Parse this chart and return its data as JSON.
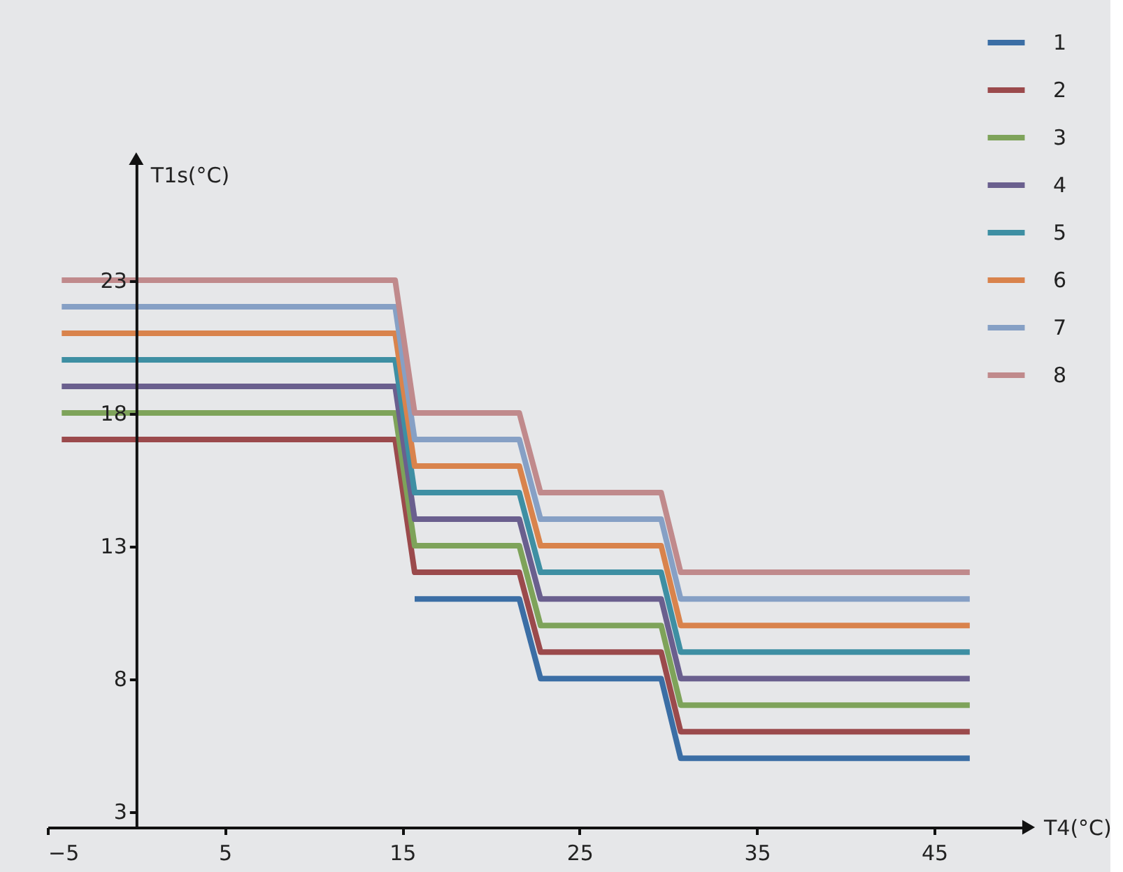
{
  "chart_data": {
    "type": "line",
    "xlabel": "T4(°C)",
    "ylabel": "T1s(°C)",
    "x": [
      -4.2,
      14.6,
      15.7,
      21.6,
      22.8,
      29.6,
      30.7,
      47
    ],
    "xlim": [
      -5,
      50.2
    ],
    "xticks": [
      -5,
      5,
      15,
      25,
      35,
      45
    ],
    "ylim": [
      2.4,
      27.5
    ],
    "yticks": [
      3,
      8,
      13,
      18,
      23
    ],
    "grid": false,
    "legend": "top right",
    "marker": "none",
    "line_style": "solid",
    "series": [
      {
        "name": "1",
        "color": "#3b6ea5",
        "values": [
          null,
          null,
          11,
          11,
          8,
          8,
          5,
          5
        ]
      },
      {
        "name": "2",
        "color": "#9b4a4c",
        "values": [
          17,
          17,
          12,
          12,
          9,
          9,
          6,
          6
        ]
      },
      {
        "name": "3",
        "color": "#7ea35a",
        "values": [
          18,
          18,
          13,
          13,
          10,
          10,
          7,
          7
        ]
      },
      {
        "name": "4",
        "color": "#6a5f8e",
        "values": [
          19,
          19,
          14,
          14,
          11,
          11,
          8,
          8
        ]
      },
      {
        "name": "5",
        "color": "#3e8fa3",
        "values": [
          20,
          20,
          15,
          15,
          12,
          12,
          9,
          9
        ]
      },
      {
        "name": "6",
        "color": "#d9834c",
        "values": [
          21,
          21,
          16,
          16,
          13,
          13,
          10,
          10
        ]
      },
      {
        "name": "7",
        "color": "#86a0c5",
        "values": [
          22,
          22,
          17,
          17,
          14,
          14,
          11,
          11
        ]
      },
      {
        "name": "8",
        "color": "#c08a8c",
        "values": [
          23,
          23,
          18,
          18,
          15,
          15,
          12,
          12
        ]
      }
    ]
  }
}
